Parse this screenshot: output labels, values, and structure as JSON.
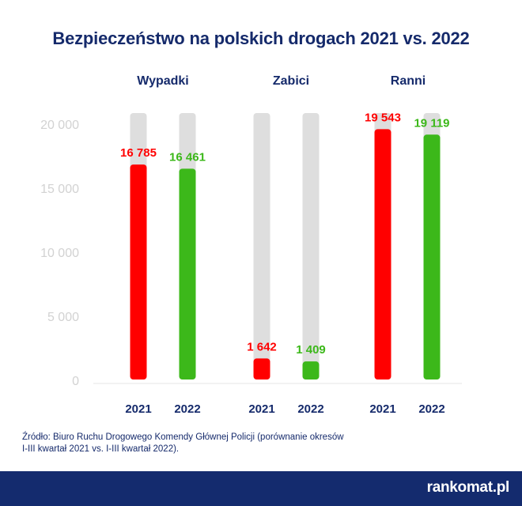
{
  "title": "Bezpieczeństwo na polskich drogach 2021 vs. 2022",
  "source_line1": "Źródło: Biuro Ruchu Drogowego Komendy Głównej Policji (porównanie okresów",
  "source_line2": "I-III kwartał 2021 vs. I-III kwartał 2022).",
  "brand": "rankomat.pl",
  "colors": {
    "y2021": "#ff0000",
    "y2022": "#3cb81a",
    "track": "#dedede",
    "title": "#152a6b",
    "axis_text": "#d2d2d2"
  },
  "chart_data": {
    "type": "bar",
    "title": "Bezpieczeństwo na polskich drogach 2021 vs. 2022",
    "ylim": [
      0,
      20000
    ],
    "y_ticks": [
      "0",
      "5 000",
      "10 000",
      "15 000",
      "20 000"
    ],
    "y_tick_values": [
      0,
      5000,
      10000,
      15000,
      20000
    ],
    "grid": false,
    "groups": [
      {
        "label": "Wypadki",
        "bars": [
          {
            "year": "2021",
            "value": 16785,
            "label": "16 785"
          },
          {
            "year": "2022",
            "value": 16461,
            "label": "16 461"
          }
        ]
      },
      {
        "label": "Zabici",
        "bars": [
          {
            "year": "2021",
            "value": 1642,
            "label": "1 642"
          },
          {
            "year": "2022",
            "value": 1409,
            "label": "1 409"
          }
        ]
      },
      {
        "label": "Ranni",
        "bars": [
          {
            "year": "2021",
            "value": 19543,
            "label": "19 543"
          },
          {
            "year": "2022",
            "value": 19119,
            "label": "19 119"
          }
        ]
      }
    ]
  }
}
